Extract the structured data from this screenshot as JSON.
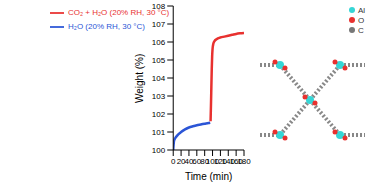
{
  "chart_data": {
    "type": "line",
    "xlabel": "Time (min)",
    "ylabel": "Weight (%)",
    "xlim": [
      0,
      180
    ],
    "xticks": [
      0,
      20,
      40,
      60,
      80,
      100,
      120,
      140,
      160,
      180
    ],
    "ylim": [
      100,
      108
    ],
    "yticks": [
      100,
      101,
      102,
      103,
      104,
      105,
      106,
      107,
      108
    ],
    "grid": false,
    "legend": "upper left",
    "annotations": [
      "Al",
      "O",
      "C"
    ],
    "series": [
      {
        "name": "H₂O (20% RH, 30 °C)",
        "color": "#2b55d6",
        "x": [
          0,
          2,
          5,
          10,
          20,
          30,
          40,
          50,
          60,
          70,
          80,
          90,
          94
        ],
        "values": [
          100.0,
          100.5,
          100.65,
          100.8,
          101.0,
          101.15,
          101.25,
          101.32,
          101.38,
          101.42,
          101.46,
          101.5,
          101.52
        ]
      },
      {
        "name": "CO₂ + H₂O (20% RH, 30 °C)",
        "color": "#e8312f",
        "x": [
          95,
          96,
          97,
          98,
          99,
          100,
          102,
          105,
          110,
          120,
          130,
          140,
          150,
          160,
          170,
          180
        ],
        "values": [
          101.6,
          102.5,
          103.5,
          104.5,
          105.2,
          105.6,
          105.9,
          106.05,
          106.15,
          106.25,
          106.3,
          106.35,
          106.4,
          106.45,
          106.48,
          106.5
        ]
      }
    ]
  }
}
